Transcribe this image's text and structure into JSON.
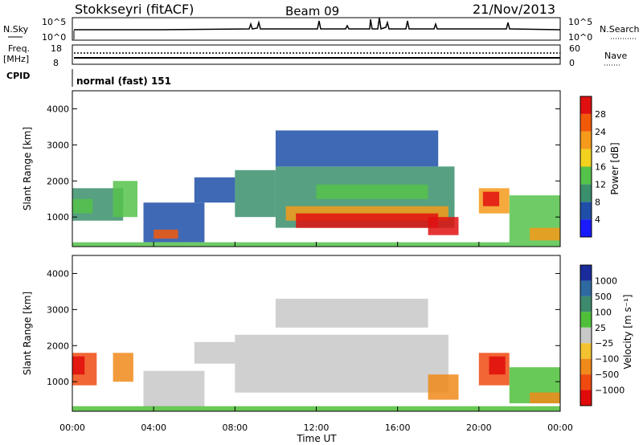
{
  "header": {
    "station": "Stokkseyri (fitACF)",
    "beam": "Beam 09",
    "date": "21/Nov/2013"
  },
  "top_panels": {
    "nsky_label": "N.Sky",
    "nsky_ticks": [
      "10^5",
      "10^0"
    ],
    "nsearch_label": "N.Search",
    "nsearch_ticks": [
      "10^5",
      "10^0"
    ],
    "freq_label": "Freq.",
    "freq_unit": "[MHz]",
    "freq_ticks": [
      "18",
      "8"
    ],
    "nave_label": "Nave",
    "nave_ticks": [
      "60",
      "0"
    ],
    "cpid_label": "CPID",
    "cpid_text": "normal (fast) 151"
  },
  "colors": {
    "power": [
      "#1a1aff",
      "#1f4fa8",
      "#3a8f6c",
      "#55c24a",
      "#f2d21f",
      "#f59a1a",
      "#f25a0a",
      "#e01010"
    ],
    "velocity": [
      "#1a2b9c",
      "#2e6aa0",
      "#3d8a6e",
      "#4fbf3a",
      "#c8c8c8",
      "#f2c230",
      "#f08a1a",
      "#f04a10",
      "#e00a0a"
    ]
  },
  "chart_data": [
    {
      "type": "heatmap",
      "panel": "power",
      "xlabel": "Time UT",
      "ylabel": "Slant Range [km]",
      "x_ticks": [
        "00:00",
        "04:00",
        "08:00",
        "12:00",
        "16:00",
        "20:00",
        "00:00"
      ],
      "x_range_hours": [
        0,
        24
      ],
      "y_ticks": [
        "1000",
        "2000",
        "3000",
        "4000"
      ],
      "ylim": [
        180,
        4500
      ],
      "colorbar_label": "Power [dB]",
      "colorbar_ticks": [
        "4",
        "8",
        "12",
        "16",
        "20",
        "24",
        "28"
      ],
      "regions": [
        {
          "t0": 0.0,
          "t1": 2.5,
          "r0": 900,
          "r1": 1800,
          "v": 2
        },
        {
          "t0": 0.0,
          "t1": 1.0,
          "r0": 1100,
          "r1": 1500,
          "v": 3
        },
        {
          "t0": 2.0,
          "t1": 3.2,
          "r0": 1000,
          "r1": 2000,
          "v": 3
        },
        {
          "t0": 3.5,
          "t1": 6.5,
          "r0": 300,
          "r1": 1400,
          "v": 1
        },
        {
          "t0": 4.0,
          "t1": 5.2,
          "r0": 400,
          "r1": 650,
          "v": 6
        },
        {
          "t0": 6.0,
          "t1": 8.0,
          "r0": 1400,
          "r1": 2100,
          "v": 1
        },
        {
          "t0": 8.0,
          "t1": 10.0,
          "r0": 1000,
          "r1": 2300,
          "v": 2
        },
        {
          "t0": 10.0,
          "t1": 18.8,
          "r0": 700,
          "r1": 2400,
          "v": 2
        },
        {
          "t0": 10.5,
          "t1": 18.5,
          "r0": 900,
          "r1": 1300,
          "v": 5
        },
        {
          "t0": 11.0,
          "t1": 18.0,
          "r0": 700,
          "r1": 1100,
          "v": 7
        },
        {
          "t0": 12.0,
          "t1": 17.5,
          "r0": 1500,
          "r1": 1900,
          "v": 3
        },
        {
          "t0": 17.5,
          "t1": 19.0,
          "r0": 500,
          "r1": 1000,
          "v": 7
        },
        {
          "t0": 10.0,
          "t1": 18.0,
          "r0": 2400,
          "r1": 3400,
          "v": 1
        },
        {
          "t0": 20.0,
          "t1": 21.5,
          "r0": 1100,
          "r1": 1800,
          "v": 5
        },
        {
          "t0": 20.2,
          "t1": 21.0,
          "r0": 1300,
          "r1": 1700,
          "v": 7
        },
        {
          "t0": 21.5,
          "t1": 24.0,
          "r0": 300,
          "r1": 1600,
          "v": 3
        },
        {
          "t0": 22.5,
          "t1": 24.0,
          "r0": 350,
          "r1": 700,
          "v": 5
        },
        {
          "t0": 0.0,
          "t1": 24.0,
          "r0": 180,
          "r1": 300,
          "v": 3
        }
      ]
    },
    {
      "type": "heatmap",
      "panel": "velocity",
      "xlabel": "Time UT",
      "ylabel": "Slant Range [km]",
      "x_ticks": [
        "00:00",
        "04:00",
        "08:00",
        "12:00",
        "16:00",
        "20:00",
        "00:00"
      ],
      "x_range_hours": [
        0,
        24
      ],
      "y_ticks": [
        "1000",
        "2000",
        "3000",
        "4000"
      ],
      "ylim": [
        180,
        4500
      ],
      "colorbar_label": "Velocity [m s⁻¹]",
      "colorbar_ticks": [
        "1000",
        "500",
        "100",
        "25",
        "−25",
        "−100",
        "−500",
        "−1000"
      ],
      "regions": [
        {
          "t0": 0.0,
          "t1": 1.2,
          "r0": 900,
          "r1": 1800,
          "v": 7
        },
        {
          "t0": 0.0,
          "t1": 0.6,
          "r0": 1200,
          "r1": 1700,
          "v": 8
        },
        {
          "t0": 2.0,
          "t1": 3.0,
          "r0": 1000,
          "r1": 1800,
          "v": 6
        },
        {
          "t0": 3.5,
          "t1": 6.5,
          "r0": 300,
          "r1": 1300,
          "v": 4
        },
        {
          "t0": 6.0,
          "t1": 8.0,
          "r0": 1500,
          "r1": 2100,
          "v": 4
        },
        {
          "t0": 8.0,
          "t1": 18.5,
          "r0": 700,
          "r1": 2300,
          "v": 4
        },
        {
          "t0": 10.0,
          "t1": 17.5,
          "r0": 2500,
          "r1": 3300,
          "v": 4
        },
        {
          "t0": 17.5,
          "t1": 19.0,
          "r0": 500,
          "r1": 1200,
          "v": 6
        },
        {
          "t0": 20.0,
          "t1": 21.5,
          "r0": 900,
          "r1": 1800,
          "v": 7
        },
        {
          "t0": 20.5,
          "t1": 21.3,
          "r0": 1200,
          "r1": 1700,
          "v": 8
        },
        {
          "t0": 21.5,
          "t1": 24.0,
          "r0": 400,
          "r1": 1400,
          "v": 3
        },
        {
          "t0": 22.5,
          "t1": 24.0,
          "r0": 400,
          "r1": 700,
          "v": 6
        },
        {
          "t0": 0.0,
          "t1": 24.0,
          "r0": 180,
          "r1": 320,
          "v": 3
        }
      ]
    }
  ]
}
